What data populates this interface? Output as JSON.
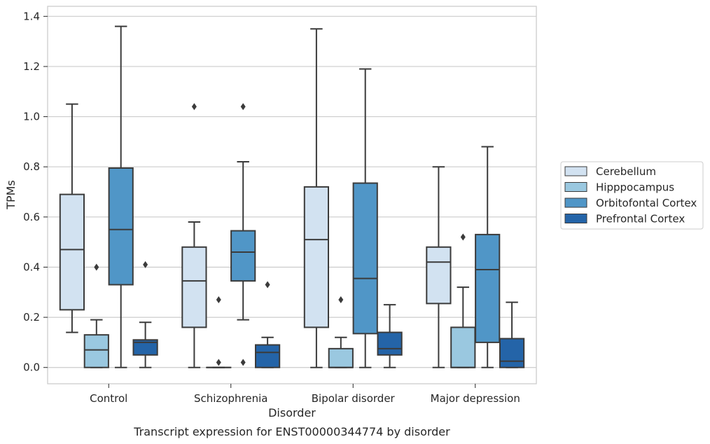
{
  "caption": "Transcript expression for ENST00000344774 by disorder",
  "chart_data": {
    "type": "box",
    "title": "",
    "xlabel": "Disorder",
    "ylabel": "TPMs",
    "ylim": [
      -0.065,
      1.44
    ],
    "yticks": [
      "0.0",
      "0.2",
      "0.4",
      "0.6",
      "0.8",
      "1.0",
      "1.2",
      "1.4"
    ],
    "grid": "horizontal",
    "legend_position": "right",
    "categories": [
      "Control",
      "Schizophrenia",
      "Bipolar disorder",
      "Major depression"
    ],
    "series": [
      {
        "name": "Cerebellum",
        "color": "#d2e2f1",
        "boxes": [
          {
            "whislo": 0.14,
            "q1": 0.23,
            "med": 0.47,
            "q3": 0.69,
            "whishi": 1.05,
            "fliers": []
          },
          {
            "whislo": 0.0,
            "q1": 0.16,
            "med": 0.345,
            "q3": 0.48,
            "whishi": 0.58,
            "fliers": [
              1.04
            ]
          },
          {
            "whislo": 0.0,
            "q1": 0.16,
            "med": 0.51,
            "q3": 0.72,
            "whishi": 1.35,
            "fliers": []
          },
          {
            "whislo": 0.0,
            "q1": 0.255,
            "med": 0.42,
            "q3": 0.48,
            "whishi": 0.8,
            "fliers": []
          }
        ]
      },
      {
        "name": "Hipppocampus",
        "color": "#9ac8e0",
        "boxes": [
          {
            "whislo": 0.0,
            "q1": 0.0,
            "med": 0.07,
            "q3": 0.13,
            "whishi": 0.19,
            "fliers": [
              0.4
            ]
          },
          {
            "whislo": 0.0,
            "q1": 0.0,
            "med": 0.0,
            "q3": 0.0,
            "whishi": 0.0,
            "fliers": [
              0.27,
              0.02
            ]
          },
          {
            "whislo": 0.0,
            "q1": 0.0,
            "med": 0.0,
            "q3": 0.075,
            "whishi": 0.12,
            "fliers": [
              0.27
            ]
          },
          {
            "whislo": 0.0,
            "q1": 0.0,
            "med": 0.0,
            "q3": 0.16,
            "whishi": 0.32,
            "fliers": [
              0.52
            ]
          }
        ]
      },
      {
        "name": "Orbitofontal Cortex",
        "color": "#5096c7",
        "boxes": [
          {
            "whislo": 0.0,
            "q1": 0.33,
            "med": 0.55,
            "q3": 0.795,
            "whishi": 1.36,
            "fliers": []
          },
          {
            "whislo": 0.19,
            "q1": 0.345,
            "med": 0.46,
            "q3": 0.545,
            "whishi": 0.82,
            "fliers": [
              1.04,
              0.02
            ]
          },
          {
            "whislo": 0.0,
            "q1": 0.135,
            "med": 0.355,
            "q3": 0.735,
            "whishi": 1.19,
            "fliers": []
          },
          {
            "whislo": 0.0,
            "q1": 0.1,
            "med": 0.39,
            "q3": 0.53,
            "whishi": 0.88,
            "fliers": []
          }
        ]
      },
      {
        "name": "Prefrontal Cortex",
        "color": "#2464a8",
        "boxes": [
          {
            "whislo": 0.0,
            "q1": 0.05,
            "med": 0.1,
            "q3": 0.11,
            "whishi": 0.18,
            "fliers": [
              0.41
            ]
          },
          {
            "whislo": 0.0,
            "q1": 0.0,
            "med": 0.06,
            "q3": 0.09,
            "whishi": 0.12,
            "fliers": [
              0.33
            ]
          },
          {
            "whislo": 0.0,
            "q1": 0.05,
            "med": 0.075,
            "q3": 0.14,
            "whishi": 0.25,
            "fliers": []
          },
          {
            "whislo": 0.0,
            "q1": 0.0,
            "med": 0.025,
            "q3": 0.115,
            "whishi": 0.26,
            "fliers": []
          }
        ]
      }
    ]
  }
}
